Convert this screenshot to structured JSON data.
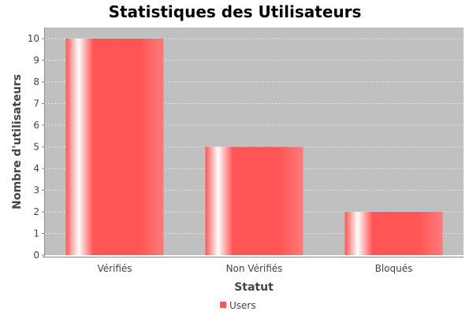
{
  "chart_data": {
    "type": "bar",
    "title": "Statistiques des Utilisateurs",
    "xlabel": "Statut",
    "ylabel": "Nombre d'utilisateurs",
    "categories": [
      "Vérifiés",
      "Non Vérifiés",
      "Bloqués"
    ],
    "series": [
      {
        "name": "Users",
        "values": [
          10,
          5,
          2
        ]
      }
    ],
    "ylim": [
      0,
      10
    ],
    "yticks": [
      0,
      1,
      2,
      3,
      4,
      5,
      6,
      7,
      8,
      9,
      10
    ],
    "grid": true,
    "legend_position": "bottom"
  },
  "colors": {
    "bar": "#ff5555",
    "bar_highlight": "#ffffff",
    "plot_background": "#c0c0c0",
    "gridline": "#eeeeee"
  }
}
